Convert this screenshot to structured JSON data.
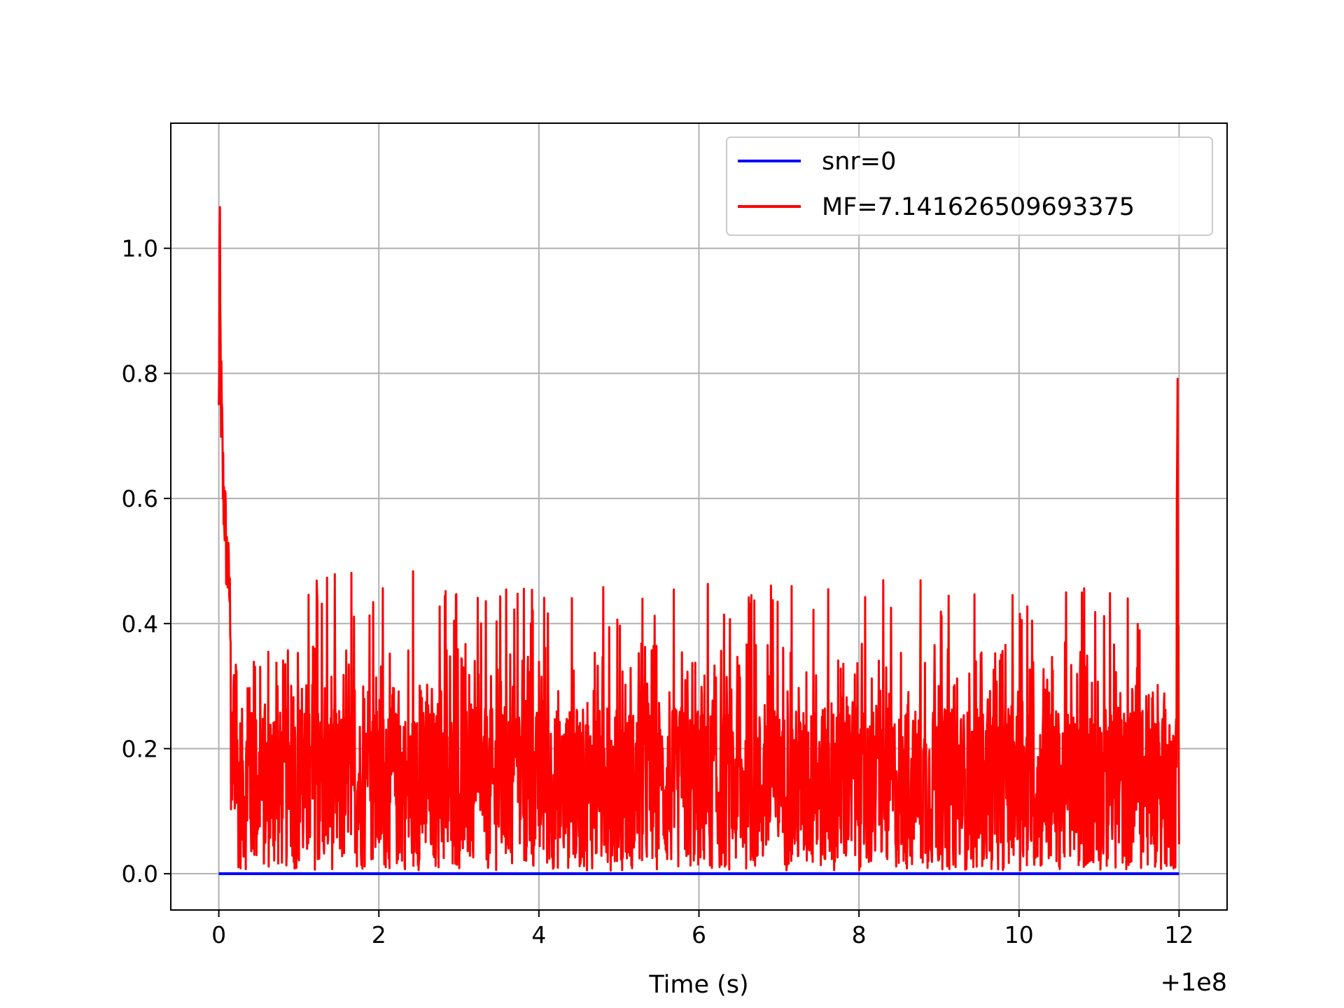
{
  "chart_data": {
    "type": "line",
    "title": "",
    "xlabel": "Time (s)",
    "ylabel": "",
    "x_offset_label": "+1e8",
    "xlim": [
      -0.6,
      12.6
    ],
    "ylim": [
      -0.058,
      1.2
    ],
    "xticks": [
      0,
      2,
      4,
      6,
      8,
      10,
      12
    ],
    "yticks": [
      0.0,
      0.2,
      0.4,
      0.6,
      0.8,
      1.0
    ],
    "xtick_labels": [
      "0",
      "2",
      "4",
      "6",
      "8",
      "10",
      "12"
    ],
    "ytick_labels": [
      "0.0",
      "0.2",
      "0.4",
      "0.6",
      "0.8",
      "1.0"
    ],
    "grid": true,
    "legend_position": "top-right",
    "series": [
      {
        "name": "snr=0",
        "color": "#0000ff",
        "x": [
          0,
          12
        ],
        "y": [
          0,
          0
        ]
      },
      {
        "name": "MF=7.141626509693375",
        "color": "#ff0000",
        "x": [
          0.0,
          0.01,
          0.02,
          0.03,
          0.05,
          0.07,
          0.09,
          0.11,
          0.13,
          0.15,
          0.18,
          0.21,
          0.25,
          0.3,
          0.35,
          0.4,
          0.5,
          0.6,
          1.2,
          2.6,
          3.2,
          5.4,
          7.6,
          10.8,
          11.5,
          11.8,
          11.95,
          11.98,
          12.0
        ],
        "y": [
          0.82,
          1.14,
          0.95,
          0.86,
          0.72,
          0.68,
          0.6,
          0.56,
          0.52,
          0.46,
          0.42,
          0.38,
          0.32,
          0.36,
          0.34,
          0.31,
          0.44,
          0.35,
          0.48,
          0.49,
          0.46,
          0.46,
          0.48,
          0.46,
          0.44,
          0.27,
          0.35,
          0.87,
          0.07
        ]
      }
    ]
  }
}
